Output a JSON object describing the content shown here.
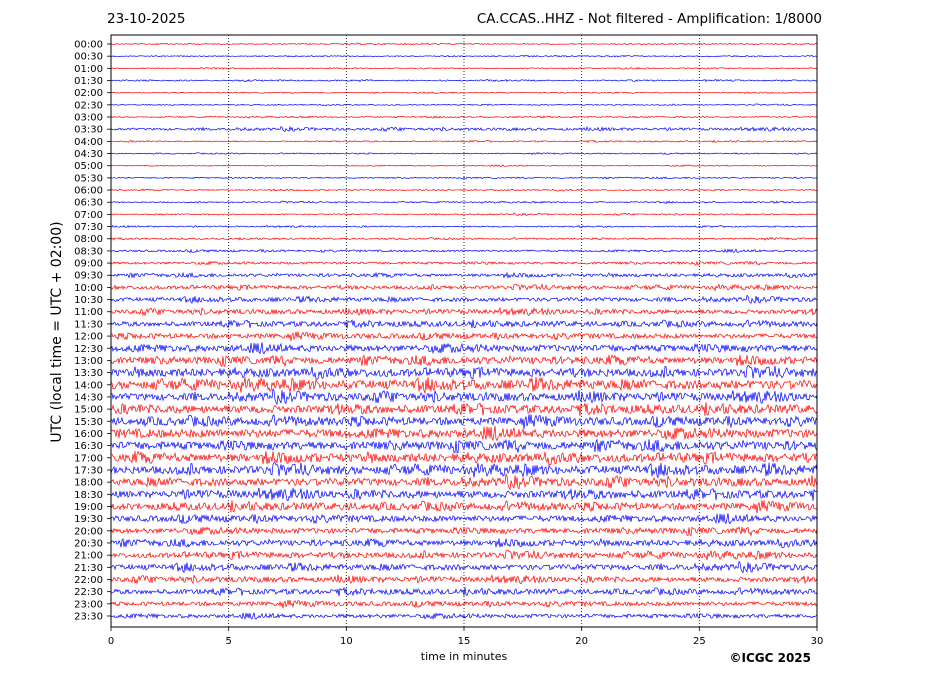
{
  "header": {
    "date": "23-10-2025",
    "title": "CA.CCAS..HHZ - Not filtered - Amplification: 1/8000"
  },
  "footer": {
    "copyright": "©ICGC 2025"
  },
  "colors": {
    "trace_a": "#ff0000",
    "trace_b": "#0000ff",
    "grid": "#000000"
  },
  "chart_data": {
    "type": "line",
    "title": "CA.CCAS..HHZ - Not filtered - Amplification: 1/8000",
    "xlabel": "time in minutes",
    "ylabel": "UTC (local time = UTC + 02:00)",
    "xlim": [
      0,
      30
    ],
    "x_ticks": [
      0,
      5,
      10,
      15,
      20,
      25,
      30
    ],
    "grid": "vertical dotted lines at each x tick",
    "row_labels": [
      "00:00",
      "00:30",
      "01:00",
      "01:30",
      "02:00",
      "02:30",
      "03:00",
      "03:30",
      "04:00",
      "04:30",
      "05:00",
      "05:30",
      "06:00",
      "06:30",
      "07:00",
      "07:30",
      "08:00",
      "08:30",
      "09:00",
      "09:30",
      "10:00",
      "10:30",
      "11:00",
      "11:30",
      "12:00",
      "12:30",
      "13:00",
      "13:30",
      "14:00",
      "14:30",
      "15:00",
      "15:30",
      "16:00",
      "16:30",
      "17:00",
      "17:30",
      "18:00",
      "18:30",
      "19:00",
      "19:30",
      "20:00",
      "20:30",
      "21:00",
      "21:30",
      "22:00",
      "22:30",
      "23:00",
      "23:30"
    ],
    "row_colors": [
      "red",
      "blue",
      "red",
      "blue",
      "red",
      "blue",
      "red",
      "blue",
      "red",
      "blue",
      "red",
      "blue",
      "red",
      "blue",
      "red",
      "blue",
      "red",
      "blue",
      "red",
      "blue",
      "red",
      "blue",
      "red",
      "blue",
      "red",
      "blue",
      "red",
      "blue",
      "red",
      "blue",
      "red",
      "blue",
      "red",
      "blue",
      "red",
      "blue",
      "red",
      "blue",
      "red",
      "blue",
      "red",
      "blue",
      "red",
      "blue",
      "red",
      "blue",
      "red",
      "blue"
    ],
    "row_relative_amplitude": [
      0.05,
      0.05,
      0.05,
      0.06,
      0.05,
      0.05,
      0.06,
      0.12,
      0.06,
      0.05,
      0.05,
      0.06,
      0.06,
      0.06,
      0.06,
      0.06,
      0.07,
      0.1,
      0.12,
      0.15,
      0.18,
      0.2,
      0.22,
      0.25,
      0.25,
      0.35,
      0.35,
      0.4,
      0.45,
      0.38,
      0.4,
      0.4,
      0.45,
      0.42,
      0.42,
      0.42,
      0.38,
      0.38,
      0.35,
      0.32,
      0.28,
      0.28,
      0.28,
      0.28,
      0.25,
      0.25,
      0.22,
      0.2
    ]
  }
}
